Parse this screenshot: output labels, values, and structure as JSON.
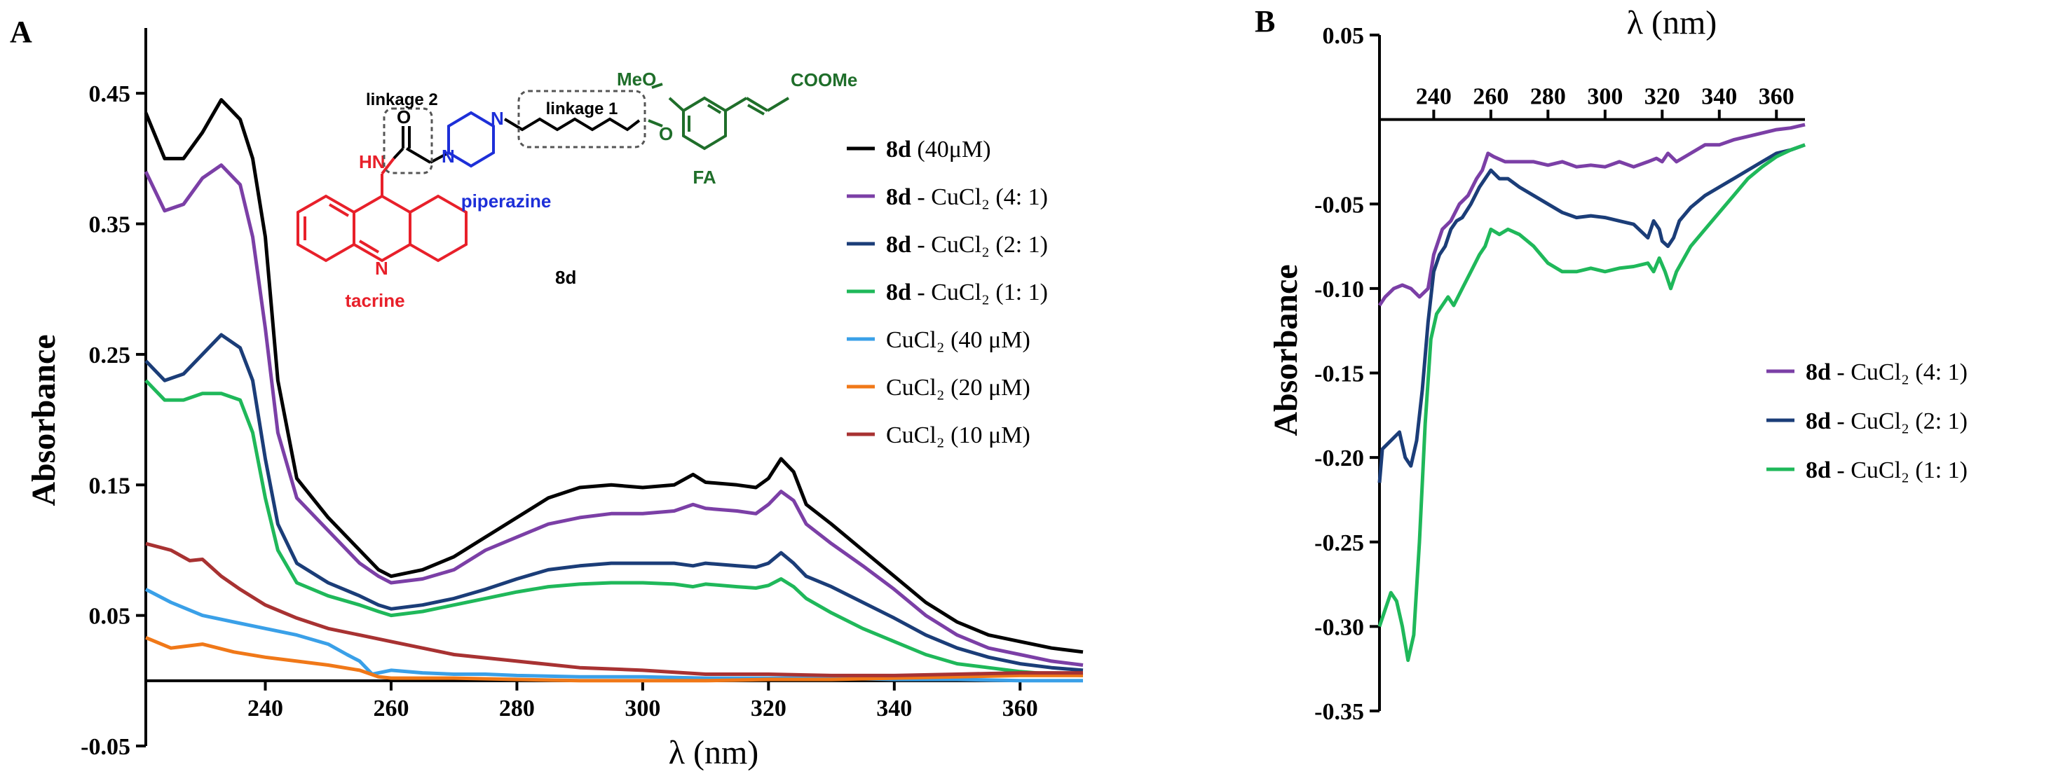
{
  "chart_data": [
    {
      "panel": "A",
      "type": "line",
      "xlabel": "λ (nm)",
      "ylabel": "Absorbance",
      "xlim": [
        221,
        370
      ],
      "ylim": [
        -0.05,
        0.5
      ],
      "xticks": [
        240,
        260,
        280,
        300,
        320,
        340,
        360
      ],
      "yticks": [
        -0.05,
        0.05,
        0.15,
        0.25,
        0.35,
        0.45
      ],
      "legend_position": "right",
      "series": [
        {
          "name_bold": "8d",
          "name": " (40μM)",
          "color": "#000000",
          "x": [
            221,
            224,
            227,
            230,
            233,
            236,
            238,
            240,
            242,
            245,
            250,
            255,
            258,
            260,
            265,
            270,
            275,
            280,
            285,
            290,
            295,
            300,
            305,
            308,
            310,
            315,
            318,
            320,
            322,
            324,
            326,
            330,
            335,
            340,
            345,
            350,
            355,
            360,
            365,
            370
          ],
          "y": [
            0.435,
            0.4,
            0.4,
            0.42,
            0.445,
            0.43,
            0.4,
            0.34,
            0.23,
            0.155,
            0.125,
            0.1,
            0.085,
            0.08,
            0.085,
            0.095,
            0.11,
            0.125,
            0.14,
            0.148,
            0.15,
            0.148,
            0.15,
            0.158,
            0.152,
            0.15,
            0.148,
            0.155,
            0.17,
            0.16,
            0.135,
            0.12,
            0.1,
            0.08,
            0.06,
            0.045,
            0.035,
            0.03,
            0.025,
            0.022
          ]
        },
        {
          "name_bold": "8d",
          "name": " - CuCl₂ (4: 1)",
          "color": "#7b3fa6",
          "x": [
            221,
            224,
            227,
            230,
            233,
            236,
            238,
            240,
            242,
            245,
            250,
            255,
            258,
            260,
            265,
            270,
            275,
            280,
            285,
            290,
            295,
            300,
            305,
            308,
            310,
            315,
            318,
            320,
            322,
            324,
            326,
            330,
            335,
            340,
            345,
            350,
            355,
            360,
            365,
            370
          ],
          "y": [
            0.39,
            0.36,
            0.365,
            0.385,
            0.395,
            0.38,
            0.34,
            0.27,
            0.19,
            0.14,
            0.115,
            0.09,
            0.08,
            0.075,
            0.078,
            0.085,
            0.1,
            0.11,
            0.12,
            0.125,
            0.128,
            0.128,
            0.13,
            0.135,
            0.132,
            0.13,
            0.128,
            0.135,
            0.145,
            0.138,
            0.12,
            0.105,
            0.088,
            0.07,
            0.05,
            0.035,
            0.025,
            0.02,
            0.015,
            0.012
          ]
        },
        {
          "name_bold": "8d",
          "name": " - CuCl₂ (2: 1)",
          "color": "#1b3d78",
          "x": [
            221,
            224,
            227,
            230,
            233,
            236,
            238,
            240,
            242,
            245,
            250,
            255,
            258,
            260,
            265,
            270,
            275,
            280,
            285,
            290,
            295,
            300,
            305,
            308,
            310,
            315,
            318,
            320,
            322,
            324,
            326,
            330,
            335,
            340,
            345,
            350,
            355,
            360,
            365,
            370
          ],
          "y": [
            0.245,
            0.23,
            0.235,
            0.25,
            0.265,
            0.255,
            0.23,
            0.17,
            0.12,
            0.09,
            0.075,
            0.065,
            0.058,
            0.055,
            0.058,
            0.063,
            0.07,
            0.078,
            0.085,
            0.088,
            0.09,
            0.09,
            0.09,
            0.088,
            0.09,
            0.088,
            0.087,
            0.09,
            0.098,
            0.09,
            0.08,
            0.072,
            0.06,
            0.048,
            0.035,
            0.025,
            0.018,
            0.013,
            0.01,
            0.008
          ]
        },
        {
          "name_bold": "8d",
          "name": " - CuCl₂ (1: 1)",
          "color": "#1fb85a",
          "x": [
            221,
            224,
            227,
            230,
            233,
            236,
            238,
            240,
            242,
            245,
            250,
            255,
            258,
            260,
            265,
            270,
            275,
            280,
            285,
            290,
            295,
            300,
            305,
            308,
            310,
            315,
            318,
            320,
            322,
            324,
            326,
            330,
            335,
            340,
            345,
            350,
            355,
            360,
            365,
            370
          ],
          "y": [
            0.23,
            0.215,
            0.215,
            0.22,
            0.22,
            0.215,
            0.19,
            0.14,
            0.1,
            0.075,
            0.065,
            0.058,
            0.053,
            0.05,
            0.053,
            0.058,
            0.063,
            0.068,
            0.072,
            0.074,
            0.075,
            0.075,
            0.074,
            0.072,
            0.074,
            0.072,
            0.071,
            0.073,
            0.078,
            0.072,
            0.063,
            0.052,
            0.04,
            0.03,
            0.02,
            0.013,
            0.01,
            0.007,
            0.005,
            0.004
          ]
        },
        {
          "name_bold": "",
          "name": "CuCl₂ (40 μM)",
          "color": "#3aa0e8",
          "x": [
            221,
            225,
            230,
            235,
            240,
            245,
            250,
            253,
            255,
            257,
            260,
            265,
            270,
            275,
            280,
            290,
            300,
            310,
            320,
            330,
            340,
            350,
            360,
            370
          ],
          "y": [
            0.07,
            0.06,
            0.05,
            0.045,
            0.04,
            0.035,
            0.028,
            0.02,
            0.015,
            0.005,
            0.008,
            0.006,
            0.005,
            0.005,
            0.004,
            0.003,
            0.003,
            0.002,
            0.002,
            0.002,
            0.001,
            0.001,
            0.0,
            0.0
          ]
        },
        {
          "name_bold": "",
          "name": "CuCl₂ (20 μM)",
          "color": "#f07818",
          "x": [
            221,
            225,
            230,
            235,
            240,
            245,
            250,
            255,
            258,
            260,
            270,
            280,
            290,
            300,
            310,
            320,
            330,
            340,
            350,
            360,
            370
          ],
          "y": [
            0.033,
            0.025,
            0.028,
            0.022,
            0.018,
            0.015,
            0.012,
            0.008,
            0.003,
            0.002,
            0.002,
            0.001,
            0.0,
            0.0,
            0.0,
            0.001,
            0.001,
            0.002,
            0.003,
            0.004,
            0.004
          ]
        },
        {
          "name_bold": "",
          "name": "CuCl₂ (10 μM)",
          "color": "#a83232",
          "x": [
            221,
            225,
            228,
            230,
            233,
            236,
            240,
            245,
            250,
            255,
            260,
            265,
            270,
            280,
            290,
            300,
            310,
            320,
            330,
            340,
            350,
            360,
            370
          ],
          "y": [
            0.105,
            0.1,
            0.092,
            0.093,
            0.08,
            0.07,
            0.058,
            0.048,
            0.04,
            0.035,
            0.03,
            0.025,
            0.02,
            0.015,
            0.01,
            0.008,
            0.005,
            0.005,
            0.004,
            0.004,
            0.005,
            0.006,
            0.006
          ]
        }
      ]
    },
    {
      "panel": "B",
      "type": "line",
      "xlabel": "λ (nm)",
      "ylabel": "Absorbance",
      "xlim": [
        221,
        370
      ],
      "ylim": [
        -0.35,
        0.05
      ],
      "xticks": [
        240,
        260,
        280,
        300,
        320,
        340,
        360
      ],
      "yticks": [
        0.05,
        -0.05,
        -0.1,
        -0.15,
        -0.2,
        -0.25,
        -0.3,
        -0.35
      ],
      "legend_position": "right",
      "series": [
        {
          "name_bold": "8d",
          "name": " - CuCl₂ (4: 1)",
          "color": "#7b3fa6",
          "x": [
            221,
            223,
            226,
            229,
            232,
            235,
            238,
            240,
            243,
            246,
            249,
            252,
            255,
            257,
            259,
            261,
            265,
            270,
            275,
            280,
            285,
            290,
            295,
            300,
            305,
            310,
            315,
            318,
            320,
            322,
            325,
            330,
            335,
            340,
            345,
            350,
            355,
            360,
            365,
            370
          ],
          "y": [
            -0.11,
            -0.105,
            -0.1,
            -0.098,
            -0.1,
            -0.105,
            -0.1,
            -0.08,
            -0.065,
            -0.06,
            -0.05,
            -0.045,
            -0.035,
            -0.03,
            -0.02,
            -0.022,
            -0.025,
            -0.025,
            -0.025,
            -0.027,
            -0.025,
            -0.028,
            -0.027,
            -0.028,
            -0.025,
            -0.028,
            -0.025,
            -0.023,
            -0.025,
            -0.02,
            -0.025,
            -0.02,
            -0.015,
            -0.015,
            -0.012,
            -0.01,
            -0.008,
            -0.006,
            -0.005,
            -0.003
          ]
        },
        {
          "name_bold": "8d",
          "name": " - CuCl₂ (2: 1)",
          "color": "#1b3d78",
          "x": [
            221,
            222,
            225,
            228,
            230,
            232,
            234,
            236,
            238,
            240,
            242,
            244,
            246,
            248,
            250,
            253,
            256,
            258,
            260,
            263,
            266,
            270,
            275,
            280,
            285,
            290,
            295,
            300,
            305,
            310,
            315,
            317,
            319,
            320,
            322,
            324,
            326,
            330,
            335,
            340,
            345,
            350,
            355,
            360,
            365,
            370
          ],
          "y": [
            -0.215,
            -0.195,
            -0.19,
            -0.185,
            -0.2,
            -0.205,
            -0.19,
            -0.16,
            -0.12,
            -0.09,
            -0.08,
            -0.075,
            -0.065,
            -0.06,
            -0.058,
            -0.05,
            -0.04,
            -0.035,
            -0.03,
            -0.035,
            -0.035,
            -0.04,
            -0.045,
            -0.05,
            -0.055,
            -0.058,
            -0.057,
            -0.058,
            -0.06,
            -0.062,
            -0.07,
            -0.06,
            -0.065,
            -0.072,
            -0.075,
            -0.07,
            -0.06,
            -0.052,
            -0.045,
            -0.04,
            -0.035,
            -0.03,
            -0.025,
            -0.02,
            -0.018,
            -0.015
          ]
        },
        {
          "name_bold": "8d",
          "name": " - CuCl₂ (1: 1)",
          "color": "#1fb85a",
          "x": [
            221,
            223,
            225,
            227,
            229,
            231,
            233,
            235,
            237,
            239,
            241,
            243,
            245,
            247,
            250,
            253,
            256,
            258,
            260,
            263,
            266,
            270,
            275,
            280,
            285,
            290,
            295,
            300,
            305,
            310,
            315,
            317,
            319,
            321,
            323,
            325,
            330,
            335,
            340,
            345,
            350,
            355,
            360,
            365,
            370
          ],
          "y": [
            -0.3,
            -0.29,
            -0.28,
            -0.285,
            -0.3,
            -0.32,
            -0.305,
            -0.25,
            -0.18,
            -0.13,
            -0.115,
            -0.11,
            -0.105,
            -0.11,
            -0.1,
            -0.09,
            -0.08,
            -0.075,
            -0.065,
            -0.068,
            -0.065,
            -0.068,
            -0.075,
            -0.085,
            -0.09,
            -0.09,
            -0.088,
            -0.09,
            -0.088,
            -0.087,
            -0.085,
            -0.09,
            -0.082,
            -0.09,
            -0.1,
            -0.09,
            -0.075,
            -0.065,
            -0.055,
            -0.045,
            -0.035,
            -0.028,
            -0.022,
            -0.018,
            -0.015
          ]
        }
      ]
    }
  ],
  "panel_labels": {
    "a": "A",
    "b": "B"
  },
  "structure": {
    "compound_label": "8d",
    "linkage1": "linkage 1",
    "linkage2": "linkage 2",
    "piperazine": "piperazine",
    "tacrine": "tacrine",
    "fa": "FA",
    "meo": "MeO",
    "coome": "COOMe",
    "o_ester": "O",
    "o_ether": "O",
    "hn": "HN",
    "n_ring": "N",
    "n_pip1": "N",
    "n_pip2": "N",
    "n_acr": "N"
  }
}
